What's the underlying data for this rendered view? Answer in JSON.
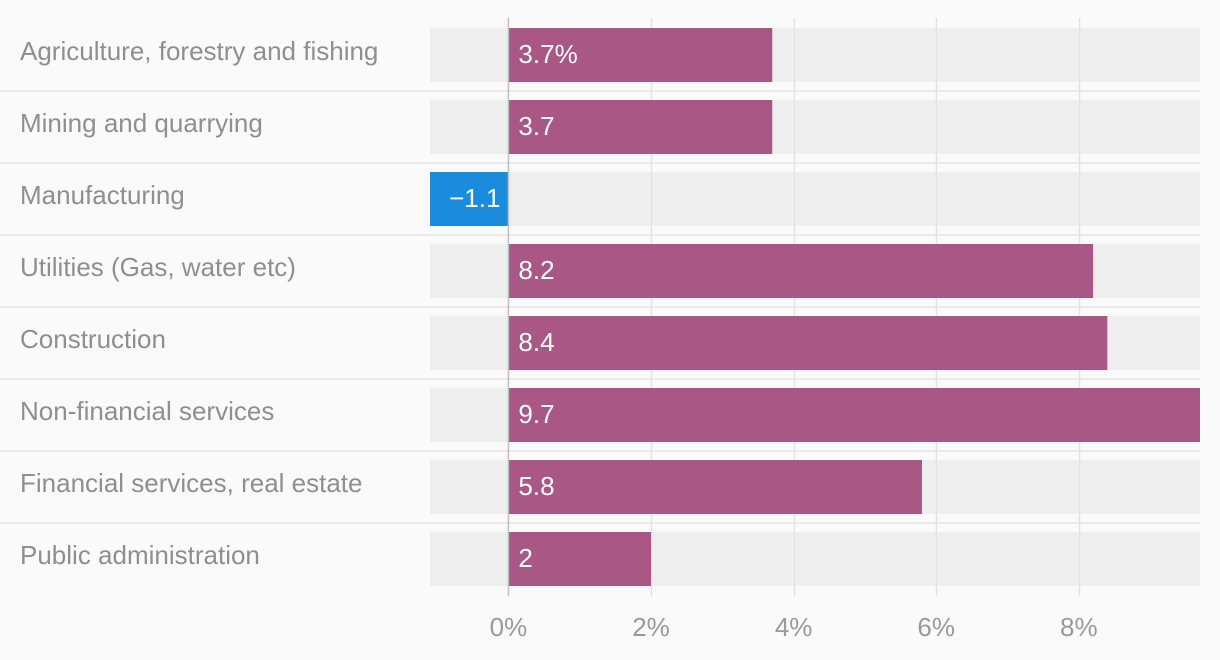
{
  "chart_data": {
    "type": "bar",
    "orientation": "horizontal",
    "categories": [
      "Agriculture, forestry and fishing",
      "Mining and quarrying",
      "Manufacturing",
      "Utilities (Gas, water etc)",
      "Construction",
      "Non-financial services",
      "Financial services, real estate",
      "Public administration"
    ],
    "values": [
      3.7,
      3.7,
      -1.1,
      8.2,
      8.4,
      9.7,
      5.8,
      2
    ],
    "value_labels": [
      "3.7%",
      "3.7",
      "−1.1",
      "8.2",
      "8.4",
      "9.7",
      "5.8",
      "2"
    ],
    "xlim": [
      -1.1,
      9.7
    ],
    "xticks": [
      0,
      2,
      4,
      6,
      8
    ],
    "xtick_labels": [
      "0%",
      "2%",
      "4%",
      "6%",
      "8%"
    ],
    "title": "",
    "xlabel": "",
    "ylabel": "",
    "grid": true,
    "colors": {
      "positive": "#a95785",
      "negative": "#1a8cdb",
      "track": "#eeeeee",
      "grid": "#e3e3e3",
      "separator": "#e6e6e6",
      "zero_line": "#bfbfbf"
    }
  }
}
